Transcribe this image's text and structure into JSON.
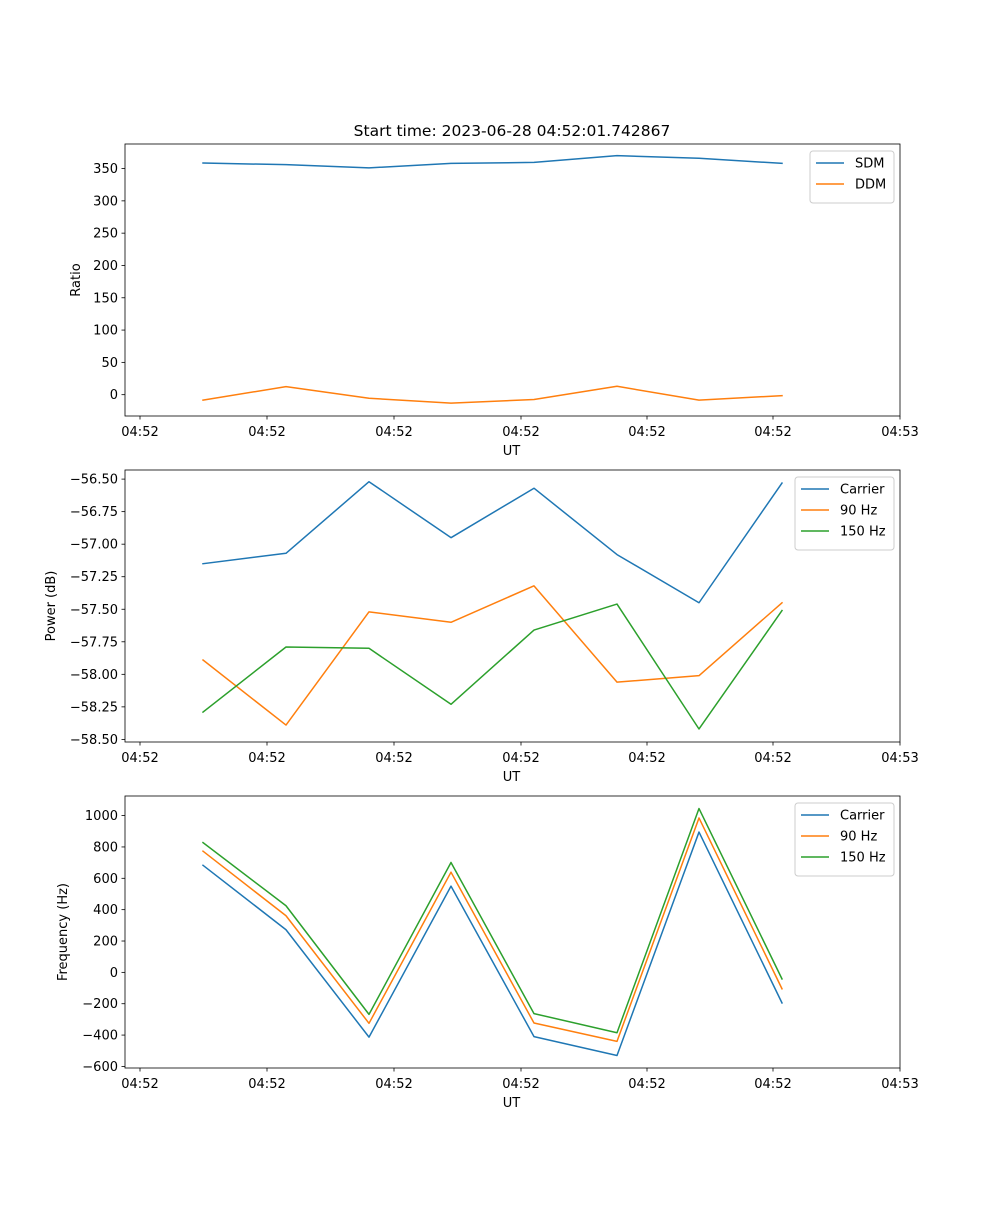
{
  "figure": {
    "title": "Start time: 2023-06-28 04:52:01.742867"
  },
  "colors": {
    "blue": "#1f77b4",
    "orange": "#ff7f0e",
    "green": "#2ca02c"
  },
  "chart_data": [
    {
      "type": "line",
      "title": "Start time: 2023-06-28 04:52:01.742867",
      "xlabel": "UT",
      "ylabel": "Ratio",
      "x_tick_labels": [
        "04:52",
        "04:52",
        "04:52",
        "04:52",
        "04:52",
        "04:52",
        "04:52"
      ],
      "x_last_tick_label": "04:53",
      "y_ticks": [
        0,
        50,
        100,
        150,
        200,
        250,
        300,
        350
      ],
      "ylim": [
        -33,
        388
      ],
      "legend": "upper right",
      "series": [
        {
          "name": "SDM",
          "color": "blue",
          "values": [
            358.5,
            356,
            351,
            358,
            359.5,
            370,
            366,
            358
          ]
        },
        {
          "name": "DDM",
          "color": "orange",
          "values": [
            -8.5,
            12.5,
            -5.5,
            -13,
            -7.5,
            13,
            -8.5,
            -1.5
          ]
        }
      ]
    },
    {
      "type": "line",
      "xlabel": "UT",
      "ylabel": "Power (dB)",
      "x_tick_labels": [
        "04:52",
        "04:52",
        "04:52",
        "04:52",
        "04:52",
        "04:52",
        "04:52"
      ],
      "x_last_tick_label": "04:53",
      "y_ticks": [
        -58.5,
        -58.25,
        -58.0,
        -57.75,
        -57.5,
        -57.25,
        -57.0,
        -56.75,
        -56.5
      ],
      "y_tick_labels": [
        "−58.50",
        "−58.25",
        "−58.00",
        "−57.75",
        "−57.50",
        "−57.25",
        "−57.00",
        "−56.75",
        "−56.50"
      ],
      "ylim": [
        -58.52,
        -56.43
      ],
      "legend": "upper right",
      "series": [
        {
          "name": "Carrier",
          "color": "blue",
          "values": [
            -57.15,
            -57.07,
            -56.52,
            -56.95,
            -56.57,
            -57.08,
            -57.45,
            -56.53
          ]
        },
        {
          "name": "90 Hz",
          "color": "orange",
          "values": [
            -57.89,
            -58.39,
            -57.52,
            -57.6,
            -57.32,
            -58.06,
            -58.01,
            -57.45
          ]
        },
        {
          "name": "150 Hz",
          "color": "green",
          "values": [
            -58.29,
            -57.79,
            -57.8,
            -58.23,
            -57.66,
            -57.46,
            -58.42,
            -57.51
          ]
        }
      ]
    },
    {
      "type": "line",
      "xlabel": "UT",
      "ylabel": "Frequency (Hz)",
      "x_tick_labels": [
        "04:52",
        "04:52",
        "04:52",
        "04:52",
        "04:52",
        "04:52",
        "04:52"
      ],
      "x_last_tick_label": "04:53",
      "y_ticks": [
        -600,
        -400,
        -200,
        0,
        200,
        400,
        600,
        800,
        1000
      ],
      "y_tick_labels": [
        "−600",
        "−400",
        "−200",
        "0",
        "200",
        "400",
        "600",
        "800",
        "1000"
      ],
      "ylim": [
        -610,
        1125
      ],
      "legend": "upper right",
      "series": [
        {
          "name": "Carrier",
          "color": "blue",
          "values": [
            683,
            272,
            -413,
            550,
            -410,
            -530,
            895,
            -195
          ]
        },
        {
          "name": "90 Hz",
          "color": "orange",
          "values": [
            773,
            361,
            -325,
            639,
            -323,
            -440,
            985,
            -105
          ]
        },
        {
          "name": "150 Hz",
          "color": "green",
          "values": [
            828,
            425,
            -268,
            701,
            -263,
            -385,
            1045,
            -42
          ]
        }
      ]
    }
  ]
}
